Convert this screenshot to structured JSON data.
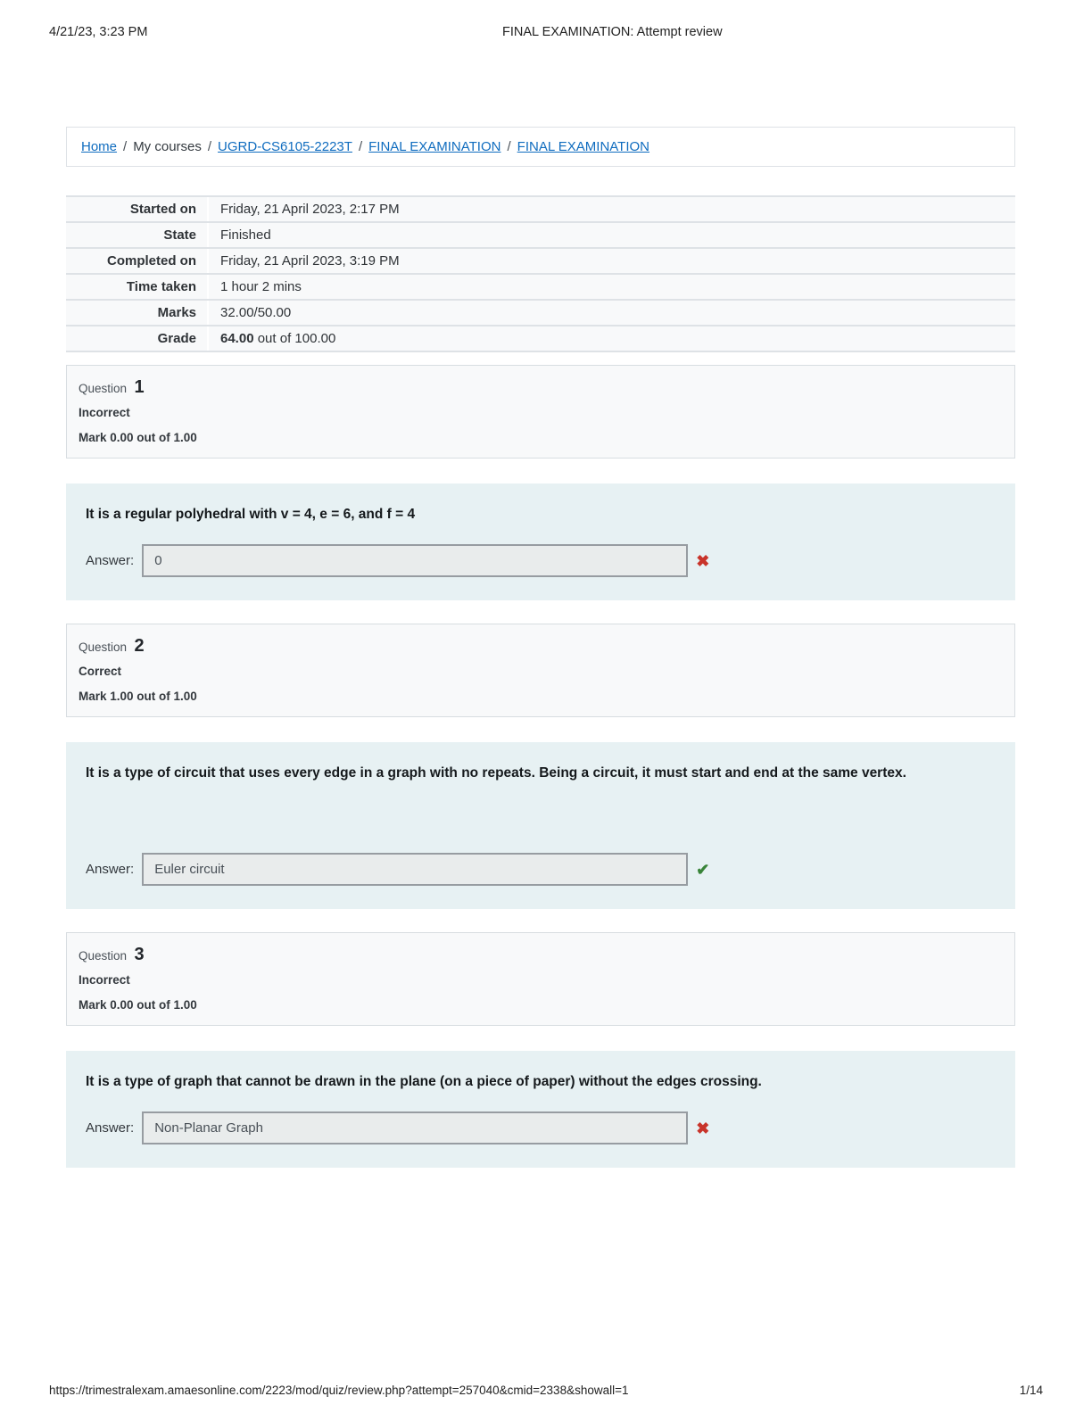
{
  "header": {
    "datetime": "4/21/23, 3:23 PM",
    "title": "FINAL EXAMINATION: Attempt review"
  },
  "breadcrumb": {
    "separator": "/",
    "items": [
      "Home",
      "My courses",
      "UGRD-CS6105-2223T",
      "FINAL EXAMINATION",
      "FINAL EXAMINATION"
    ]
  },
  "summary": {
    "rows": [
      {
        "label": "Started on",
        "value": "Friday, 21 April 2023, 2:17 PM"
      },
      {
        "label": "State",
        "value": "Finished"
      },
      {
        "label": "Completed on",
        "value": "Friday, 21 April 2023, 3:19 PM"
      },
      {
        "label": "Time taken",
        "value": "1 hour 2 mins"
      },
      {
        "label": "Marks",
        "value": "32.00/50.00"
      },
      {
        "label": "Grade",
        "value_bold": "64.00",
        "value_rest": " out of 100.00"
      }
    ]
  },
  "labels": {
    "question": "Question",
    "answer": "Answer:"
  },
  "icons": {
    "correct": "✔",
    "incorrect": "✖"
  },
  "colors": {
    "link": "#0f6cbf",
    "correct": "#398439",
    "incorrect": "#c8342a",
    "question_bg": "#e7f1f3"
  },
  "questions": [
    {
      "number": "1",
      "state": "Incorrect",
      "mark": "Mark 0.00 out of 1.00",
      "text": "It is a regular polyhedral with v = 4, e = 6, and f = 4",
      "answer": "0",
      "result": "incorrect"
    },
    {
      "number": "2",
      "state": "Correct",
      "mark": "Mark 1.00 out of 1.00",
      "text": "It is a type of circuit that uses every edge in a graph with no repeats. Being a circuit, it must start and end at the same vertex.",
      "answer": "Euler circuit",
      "result": "correct"
    },
    {
      "number": "3",
      "state": "Incorrect",
      "mark": "Mark 0.00 out of 1.00",
      "text": "It is a type of graph that cannot be drawn in the plane (on a piece of paper) without the edges crossing.",
      "answer": "Non-Planar Graph",
      "result": "incorrect"
    }
  ],
  "footer": {
    "url": "https://trimestralexam.amaesonline.com/2223/mod/quiz/review.php?attempt=257040&cmid=2338&showall=1",
    "page": "1/14"
  }
}
